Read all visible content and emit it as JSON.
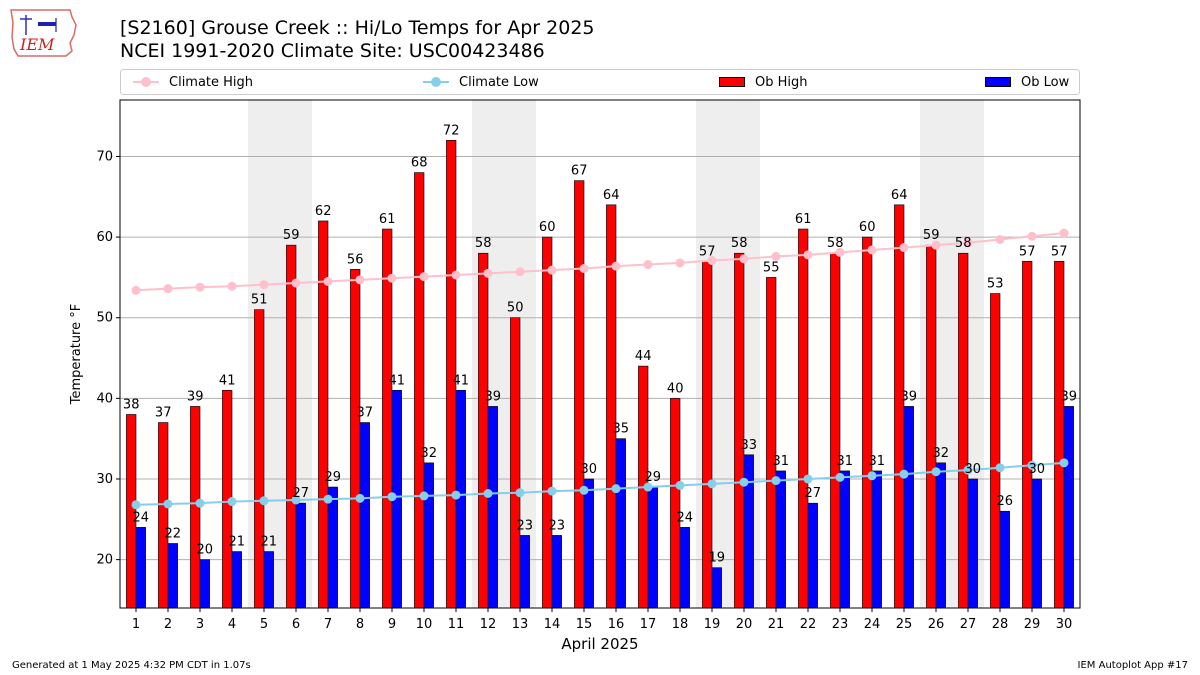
{
  "logo": {
    "text": "IEM",
    "icon": "iowa-state-outline-weather-station-icon"
  },
  "header": {
    "title_line1": "[S2160] Grouse Creek :: Hi/Lo Temps for Apr 2025",
    "title_line2": "NCEI 1991-2020 Climate Site: USC00423486"
  },
  "legend": [
    {
      "label": "Climate High",
      "color": "#ffc0cb",
      "kind": "line"
    },
    {
      "label": "Climate Low",
      "color": "#87ceeb",
      "kind": "line"
    },
    {
      "label": "Ob High",
      "color": "#ff0000",
      "kind": "bar"
    },
    {
      "label": "Ob Low",
      "color": "#0000ff",
      "kind": "bar"
    }
  ],
  "footer": {
    "left": "Generated at 1 May 2025 4:32 PM CDT in 1.07s",
    "right": "IEM Autoplot App #17"
  },
  "chart_data": {
    "type": "bar",
    "xlabel": "April 2025",
    "ylabel": "Temperature °F",
    "ylim": [
      14,
      77
    ],
    "yticks": [
      20,
      30,
      40,
      50,
      60,
      70
    ],
    "grid": "horizontal",
    "legend_position": "top",
    "weekend_shading": [
      5,
      6,
      12,
      13,
      19,
      20,
      26,
      27
    ],
    "categories": [
      "1",
      "2",
      "3",
      "4",
      "5",
      "6",
      "7",
      "8",
      "9",
      "10",
      "11",
      "12",
      "13",
      "14",
      "15",
      "16",
      "17",
      "18",
      "19",
      "20",
      "21",
      "22",
      "23",
      "24",
      "25",
      "26",
      "27",
      "28",
      "29",
      "30"
    ],
    "series": [
      {
        "name": "Ob High",
        "kind": "bar",
        "color": "#ff0000",
        "values": [
          38,
          37,
          39,
          41,
          51,
          59,
          62,
          56,
          61,
          68,
          72,
          58,
          50,
          60,
          67,
          64,
          44,
          40,
          57,
          58,
          55,
          61,
          58,
          60,
          64,
          59,
          58,
          53,
          57,
          57
        ]
      },
      {
        "name": "Ob Low",
        "kind": "bar",
        "color": "#0000ff",
        "values": [
          24,
          22,
          20,
          21,
          21,
          27,
          29,
          37,
          41,
          32,
          41,
          39,
          23,
          23,
          30,
          35,
          29,
          24,
          19,
          33,
          31,
          27,
          31,
          31,
          39,
          32,
          30,
          26,
          30,
          39
        ]
      },
      {
        "name": "Climate High",
        "kind": "line",
        "color": "#ffc0cb",
        "values": [
          53.4,
          53.6,
          53.8,
          53.9,
          54.1,
          54.3,
          54.5,
          54.7,
          54.9,
          55.1,
          55.3,
          55.5,
          55.7,
          55.9,
          56.1,
          56.4,
          56.6,
          56.8,
          57.1,
          57.3,
          57.6,
          57.8,
          58.1,
          58.4,
          58.7,
          59.0,
          59.3,
          59.7,
          60.1,
          60.5
        ]
      },
      {
        "name": "Climate Low",
        "kind": "line",
        "color": "#87ceeb",
        "values": [
          26.8,
          26.9,
          27.0,
          27.2,
          27.3,
          27.4,
          27.5,
          27.6,
          27.8,
          27.9,
          28.0,
          28.2,
          28.3,
          28.5,
          28.6,
          28.8,
          29.0,
          29.2,
          29.4,
          29.6,
          29.8,
          30.0,
          30.2,
          30.4,
          30.6,
          30.9,
          31.1,
          31.4,
          31.7,
          32.0
        ]
      }
    ]
  }
}
